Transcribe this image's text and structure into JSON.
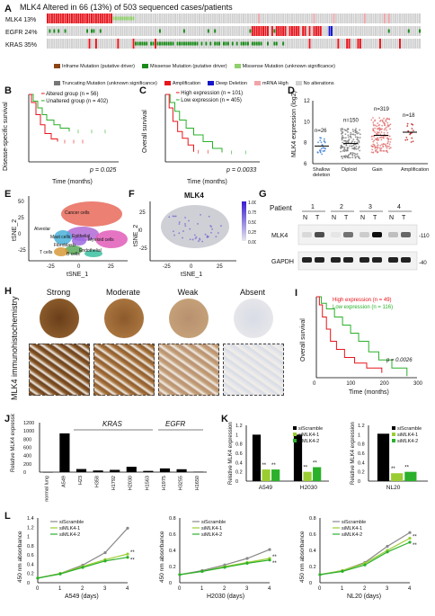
{
  "panelA": {
    "label": "A",
    "title": "MLK4 Altered in 66 (13%) of 503 sequenced cases/patients",
    "genes": [
      {
        "name": "MLK4",
        "pct": "13%"
      },
      {
        "name": "EGFR",
        "pct": "24%"
      },
      {
        "name": "KRAS",
        "pct": "35%"
      }
    ],
    "legend": [
      {
        "text": "Inframe Mutation (putative driver)",
        "color": "#8b4513"
      },
      {
        "text": "Missense Mutation (putative driver)",
        "color": "#1a8a1a"
      },
      {
        "text": "Missense Mutation (unknown significance)",
        "color": "#8fd06b"
      },
      {
        "text": "Truncating Mutation (unknown significance)",
        "color": "#777777"
      },
      {
        "text": "Amplification",
        "color": "#e8141c"
      },
      {
        "text": "Deep Deletion",
        "color": "#1414c8"
      },
      {
        "text": "mRNA High",
        "color": "#f2a3a8"
      },
      {
        "text": "No alterations",
        "color": "#d0d0d0"
      }
    ]
  },
  "panelB": {
    "label": "B",
    "ylabel": "Disease-specific survival",
    "xlabel": "Time (months)",
    "legend": [
      "Altered group (n = 56)",
      "Unaltered group (n = 402)"
    ],
    "pvalue": "p = 0.025"
  },
  "panelC": {
    "label": "C",
    "ylabel": "Overall survival",
    "xlabel": "Time (months)",
    "legend": [
      "High expression (n = 101)",
      "Low expression (n = 405)"
    ],
    "pvalue": "p = 0.0033"
  },
  "panelD": {
    "label": "D",
    "ylabel": "MLK4 expression (log2)",
    "yticks": [
      "12",
      "10",
      "8",
      "6"
    ],
    "groups": [
      {
        "name": "Shallow deletion",
        "n": "n=26",
        "color": "#3b7bd6"
      },
      {
        "name": "Diploid",
        "n": "n=150",
        "color": "#777777"
      },
      {
        "name": "Gain",
        "n": "n=319",
        "color": "#e07070"
      },
      {
        "name": "Amplification",
        "n": "n=18",
        "color": "#c01818"
      }
    ]
  },
  "panelE": {
    "label": "E",
    "xlabel": "tSNE_1",
    "ylabel": "tSNE_2",
    "xticks": [
      "-25",
      "0",
      "25"
    ],
    "yticks": [
      "50",
      "25",
      "0",
      "-25"
    ],
    "clusters": [
      "Cancer cells",
      "Alveolar",
      "Mast cells",
      "Fibroblasts",
      "Myeloid cells",
      "Endothelial",
      "B cells",
      "T cells",
      "Epithelial"
    ]
  },
  "panelF": {
    "label": "F",
    "title": "MLK4",
    "xlabel": "tSNE_1",
    "ylabel": "tSNE_2",
    "xticks": [
      "-25",
      "0",
      "25"
    ],
    "yticks": [
      "25",
      "0",
      "-25"
    ],
    "scale": [
      "1.00",
      "0.75",
      "0.50",
      "0.25",
      "0.00"
    ]
  },
  "panelG": {
    "label": "G",
    "patient_label": "Patient",
    "patients": [
      "1",
      "2",
      "3",
      "4"
    ],
    "nt": [
      "N",
      "T"
    ],
    "rows": [
      "MLK4",
      "GAPDH"
    ],
    "markers": [
      "-110",
      "-40"
    ]
  },
  "panelH": {
    "label": "H",
    "ylabel": "MLK4 immunohistochemistry",
    "categories": [
      "Strong",
      "Moderate",
      "Weak",
      "Absent"
    ]
  },
  "panelI": {
    "label": "I",
    "ylabel": "Overall survival",
    "xlabel": "Time (months)",
    "xticks": [
      "0",
      "100",
      "200",
      "300"
    ],
    "legend": [
      "High expression (n = 49)",
      "Low expression (n = 116)"
    ],
    "pvalue": "p = 0.0026"
  },
  "panelJ": {
    "label": "J",
    "ylabel": "Relative MLK4 expression",
    "yticks": [
      "1200",
      "1000",
      "800",
      "600",
      "400",
      "200",
      "0"
    ],
    "group_labels": [
      "KRAS",
      "EGFR"
    ],
    "categories": [
      "normal lung",
      "A549",
      "H23",
      "H358",
      "H1792",
      "H2030",
      "H1563",
      "H1975",
      "H3255",
      "H1650"
    ]
  },
  "panelK": {
    "label": "K",
    "ylabel": "Relative MLK4 expression",
    "legend": [
      "siScramble",
      "siMLK4-1",
      "siMLK4-2"
    ],
    "left_yticks": [
      "1.2",
      "1",
      "0.8",
      "0.6",
      "0.4",
      "0.2",
      "0"
    ],
    "left_groups": [
      "A549",
      "H2030"
    ],
    "right_yticks": [
      "1.2",
      "1",
      "0.8",
      "0.6",
      "0.4",
      "0.2",
      "0"
    ],
    "right_groups": [
      "NL20"
    ],
    "sig": "**",
    "sig1": "*"
  },
  "panelL": {
    "label": "L",
    "ylabel": "450 nm absorbance",
    "legend": [
      "siScramble",
      "siMLK4-1",
      "siMLK4-2"
    ],
    "plots": [
      {
        "xlabel": "A549 (days)",
        "yticks": [
          "1.4",
          "1.2",
          "1",
          "0.8",
          "0.6",
          "0.4",
          "0.2",
          "0"
        ]
      },
      {
        "xlabel": "H2030 (days)",
        "yticks": [
          "0.8",
          "0.6",
          "0.4",
          "0.2",
          "0"
        ]
      },
      {
        "xlabel": "NL20 (days)",
        "yticks": [
          "0.8",
          "0.6",
          "0.4",
          "0.2",
          "0"
        ]
      }
    ],
    "xticks": [
      "0",
      "1",
      "2",
      "3",
      "4"
    ]
  },
  "chart_data": [
    {
      "type": "bar",
      "title": "",
      "ylabel": "Relative MLK4 expression",
      "ylim": [
        0,
        1200
      ],
      "categories": [
        "normal lung",
        "A549",
        "H23",
        "H358",
        "H1792",
        "H2030",
        "H1563",
        "H1975",
        "H3255",
        "H1650"
      ],
      "values": [
        1,
        940,
        75,
        40,
        55,
        130,
        30,
        90,
        70,
        10
      ]
    },
    {
      "type": "bar",
      "ylabel": "Relative MLK4 expression",
      "ylim": [
        0,
        1.2
      ],
      "categories": [
        "A549",
        "H2030"
      ],
      "series": [
        {
          "name": "siScramble",
          "values": [
            1.0,
            1.0
          ]
        },
        {
          "name": "siMLK4-1",
          "values": [
            0.25,
            0.2
          ]
        },
        {
          "name": "siMLK4-2",
          "values": [
            0.25,
            0.3
          ]
        }
      ]
    },
    {
      "type": "bar",
      "ylabel": "Relative MLK4 expression",
      "ylim": [
        0,
        1.2
      ],
      "categories": [
        "NL20"
      ],
      "series": [
        {
          "name": "siScramble",
          "values": [
            1.02
          ]
        },
        {
          "name": "siMLK4-1",
          "values": [
            0.17
          ]
        },
        {
          "name": "siMLK4-2",
          "values": [
            0.2
          ]
        }
      ]
    },
    {
      "type": "line",
      "xlabel": "A549 (days)",
      "ylabel": "450 nm absorbance",
      "ylim": [
        0,
        1.4
      ],
      "x": [
        0,
        1,
        2,
        3,
        4
      ],
      "series": [
        {
          "name": "siScramble",
          "values": [
            0.1,
            0.2,
            0.38,
            0.65,
            1.18
          ]
        },
        {
          "name": "siMLK4-1",
          "values": [
            0.1,
            0.2,
            0.35,
            0.5,
            0.62
          ]
        },
        {
          "name": "siMLK4-2",
          "values": [
            0.1,
            0.19,
            0.33,
            0.47,
            0.55
          ]
        }
      ]
    },
    {
      "type": "line",
      "xlabel": "H2030 (days)",
      "ylabel": "450 nm absorbance",
      "ylim": [
        0,
        0.8
      ],
      "x": [
        0,
        1,
        2,
        3,
        4
      ],
      "series": [
        {
          "name": "siScramble",
          "values": [
            0.1,
            0.15,
            0.22,
            0.3,
            0.41
          ]
        },
        {
          "name": "siMLK4-1",
          "values": [
            0.1,
            0.14,
            0.2,
            0.25,
            0.3
          ]
        },
        {
          "name": "siMLK4-2",
          "values": [
            0.1,
            0.14,
            0.19,
            0.24,
            0.28
          ]
        }
      ]
    },
    {
      "type": "line",
      "xlabel": "NL20 (days)",
      "ylabel": "450 nm absorbance",
      "ylim": [
        0,
        0.8
      ],
      "x": [
        0,
        1,
        2,
        3,
        4
      ],
      "series": [
        {
          "name": "siScramble",
          "values": [
            0.1,
            0.15,
            0.25,
            0.45,
            0.62
          ]
        },
        {
          "name": "siMLK4-1",
          "values": [
            0.1,
            0.15,
            0.24,
            0.4,
            0.55
          ]
        },
        {
          "name": "siMLK4-2",
          "values": [
            0.1,
            0.14,
            0.22,
            0.38,
            0.5
          ]
        }
      ]
    }
  ]
}
